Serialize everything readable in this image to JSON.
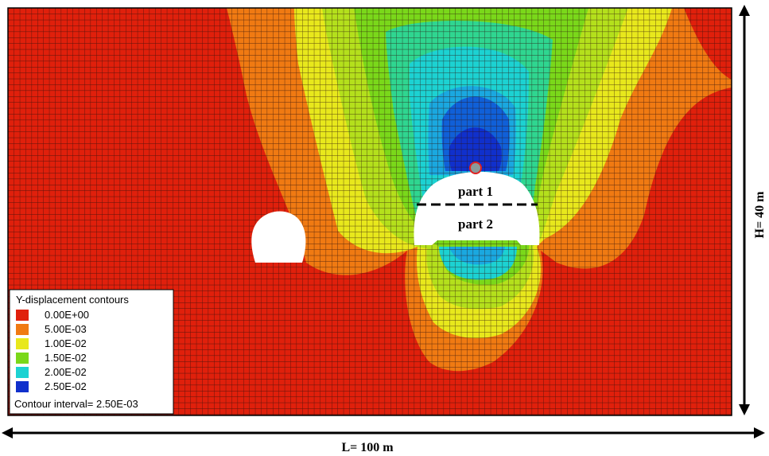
{
  "legend": {
    "title": "Y-displacement contours",
    "items": [
      {
        "label": "0.00E+00",
        "color": "#e0200c"
      },
      {
        "label": "5.00E-03",
        "color": "#f07a12"
      },
      {
        "label": "1.00E-02",
        "color": "#e8e81c"
      },
      {
        "label": "1.50E-02",
        "color": "#7ad81a"
      },
      {
        "label": "2.00E-02",
        "color": "#1cd2d2"
      },
      {
        "label": "2.50E-02",
        "color": "#1030cc"
      }
    ],
    "interval_label": "Contour interval=  2.50E-03"
  },
  "labels": {
    "part1": "part 1",
    "part2": "part 2",
    "width": "L= 100 m",
    "height": "H= 40 m"
  },
  "colors": {
    "red": "#e0200c",
    "orange": "#f07a12",
    "yellow": "#e8e81c",
    "green": "#7ad81a",
    "cyan": "#1cd2d2",
    "blue": "#1060d8",
    "darkblue": "#1030cc",
    "mesh": "#2a0f0a"
  }
}
